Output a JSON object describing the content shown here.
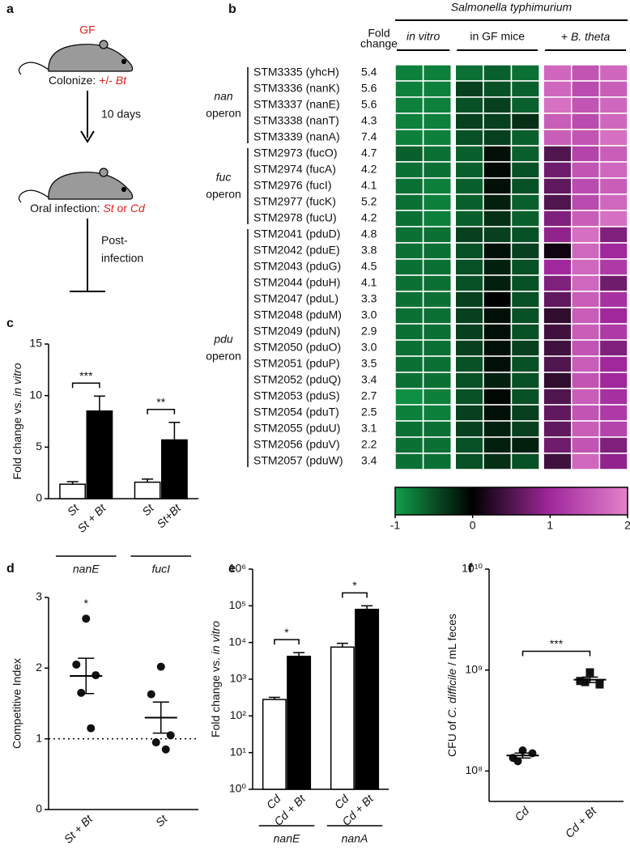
{
  "panel_labels": [
    "a",
    "b",
    "c",
    "d",
    "e",
    "f"
  ],
  "diagram": {
    "gf_label": "GF",
    "colonize": [
      "Colonize: ",
      "+/- ",
      "Bt"
    ],
    "duration": "10 days",
    "infection": [
      "Oral infection: ",
      "St",
      " or ",
      "Cd"
    ],
    "post": [
      "Post-",
      "infection"
    ]
  },
  "chart_data": [
    {
      "type": "heatmap",
      "title": "Salmonella typhimurium",
      "column_groups": [
        "in vitro",
        "in GF mice",
        [
          "+ ",
          "B. theta"
        ]
      ],
      "group_sizes": [
        2,
        3,
        3
      ],
      "fold_change_label": [
        "Fold",
        "change"
      ],
      "genes": [
        "STM3335 (yhcH)",
        "STM3336 (nanK)",
        "STM3337 (nanE)",
        "STM3338 (nanT)",
        "STM3339 (nanA)",
        "STM2973 (fucO)",
        "STM2974 (fucA)",
        "STM2976 (fucI)",
        "STM2977 (fucK)",
        "STM2978 (fucU)",
        "STM2041 (pduD)",
        "STM2042 (pduE)",
        "STM2043 (pduG)",
        "STM2044 (pduH)",
        "STM2047 (pduL)",
        "STM2048 (pduM)",
        "STM2049 (pduN)",
        "STM2050 (pduO)",
        "STM2051 (pduP)",
        "STM2052 (pduQ)",
        "STM2053 (pduS)",
        "STM2054 (pduT)",
        "STM2055 (pduU)",
        "STM2056 (pduV)",
        "STM2057 (pduW)"
      ],
      "fold_change": [
        "5.4",
        "5.6",
        "5.6",
        "4.3",
        "7.4",
        "4.7",
        "4.2",
        "4.1",
        "5.2",
        "4.2",
        "4.8",
        "3.8",
        "4.5",
        "4.1",
        "3.3",
        "3.0",
        "2.9",
        "3.0",
        "3.5",
        "3.4",
        "2.7",
        "2.5",
        "3.1",
        "2.2",
        "3.4"
      ],
      "operons": [
        {
          "name": "nan",
          "suffix": "operon",
          "rows": [
            0,
            4
          ]
        },
        {
          "name": "fuc",
          "suffix": "operon",
          "rows": [
            5,
            9
          ]
        },
        {
          "name": "pdu",
          "suffix": "operon",
          "rows": [
            10,
            24
          ]
        }
      ],
      "values": [
        [
          -0.8,
          -0.8,
          -0.7,
          -0.6,
          -0.7,
          1.7,
          1.5,
          1.7
        ],
        [
          -0.8,
          -0.8,
          -0.4,
          -0.5,
          -0.6,
          1.7,
          1.4,
          1.6
        ],
        [
          -0.8,
          -0.8,
          -0.5,
          -0.4,
          -0.6,
          1.8,
          1.5,
          1.7
        ],
        [
          -0.8,
          -0.8,
          -0.4,
          -0.4,
          -0.3,
          1.6,
          1.4,
          1.7
        ],
        [
          -0.8,
          -0.8,
          -0.5,
          -0.4,
          -0.6,
          1.6,
          1.5,
          1.8
        ],
        [
          -0.6,
          -0.7,
          -0.6,
          -0.1,
          -0.6,
          0.5,
          1.3,
          1.6
        ],
        [
          -0.7,
          -0.7,
          -0.6,
          -0.05,
          -0.5,
          0.7,
          1.5,
          1.7
        ],
        [
          -0.7,
          -0.8,
          -0.6,
          -0.1,
          -0.5,
          0.6,
          1.4,
          1.6
        ],
        [
          -0.7,
          -0.8,
          -0.6,
          -0.2,
          -0.6,
          0.5,
          1.4,
          1.7
        ],
        [
          -0.7,
          -0.8,
          -0.6,
          -0.3,
          -0.6,
          0.8,
          1.6,
          1.8
        ],
        [
          -0.7,
          -0.7,
          -0.4,
          -0.4,
          -0.5,
          0.9,
          1.8,
          0.8
        ],
        [
          -0.7,
          -0.7,
          -0.5,
          -0.1,
          -0.4,
          0.1,
          1.7,
          1.0
        ],
        [
          -0.7,
          -0.7,
          -0.5,
          -0.2,
          -0.5,
          1.0,
          1.7,
          1.2
        ],
        [
          -0.7,
          -0.7,
          -0.5,
          -0.2,
          -0.5,
          0.8,
          1.7,
          0.7
        ],
        [
          -0.7,
          -0.7,
          -0.4,
          0.0,
          -0.5,
          0.6,
          1.6,
          1.1
        ],
        [
          -0.7,
          -0.7,
          -0.4,
          -0.1,
          -0.5,
          0.3,
          1.6,
          1.0
        ],
        [
          -0.7,
          -0.7,
          -0.4,
          -0.1,
          -0.5,
          0.4,
          1.6,
          1.2
        ],
        [
          -0.7,
          -0.7,
          -0.4,
          -0.1,
          -0.4,
          0.4,
          1.5,
          0.8
        ],
        [
          -0.7,
          -0.7,
          -0.5,
          -0.1,
          -0.5,
          0.5,
          1.6,
          1.0
        ],
        [
          -0.7,
          -0.7,
          -0.5,
          -0.2,
          -0.5,
          0.3,
          1.5,
          1.0
        ],
        [
          -0.9,
          -0.8,
          -0.5,
          -0.05,
          -0.5,
          0.5,
          1.6,
          1.1
        ],
        [
          -0.8,
          -0.8,
          -0.4,
          -0.1,
          -0.4,
          0.6,
          1.5,
          1.2
        ],
        [
          -0.7,
          -0.7,
          -0.4,
          -0.2,
          -0.4,
          0.6,
          1.6,
          1.3
        ],
        [
          -0.7,
          -0.7,
          -0.5,
          -0.2,
          -0.2,
          0.7,
          1.5,
          0.8
        ],
        [
          -0.7,
          -0.7,
          -0.5,
          -0.3,
          -0.5,
          0.4,
          1.7,
          0.9
        ]
      ],
      "zlim": [
        -1,
        2
      ],
      "colorbar_ticks": [
        -1,
        0,
        1,
        2
      ],
      "colors": [
        "#10a04a",
        "#000000",
        "#a0289c",
        "#e482cc"
      ]
    },
    {
      "type": "bar",
      "categories": [
        "St",
        "St + Bt",
        "St",
        "St+Bt"
      ],
      "group_labels": [
        "nanE",
        "fucI"
      ],
      "group_size": 2,
      "values": [
        1.4,
        8.5,
        1.6,
        5.7
      ],
      "errors": [
        0.25,
        1.45,
        0.3,
        1.7
      ],
      "colors": [
        "#ffffff",
        "#000000",
        "#ffffff",
        "#000000"
      ],
      "ylim": [
        0,
        15
      ],
      "yticks": [
        0,
        5,
        10,
        15
      ],
      "ylabel": [
        "Fold change vs. ",
        "in vitro"
      ],
      "significance": [
        {
          "label": "***",
          "between": [
            0,
            1
          ]
        },
        {
          "label": "**",
          "between": [
            2,
            3
          ]
        }
      ]
    },
    {
      "type": "dot",
      "categories": [
        "St + Bt",
        "St"
      ],
      "markers": [
        "circle",
        "circle"
      ],
      "points": [
        [
          2.7,
          2.05,
          1.9,
          1.65,
          1.15
        ],
        [
          2.02,
          1.63,
          1.05,
          0.95,
          0.85
        ]
      ],
      "means": [
        1.89,
        1.3
      ],
      "sems": [
        0.25,
        0.22
      ],
      "ylim": [
        0,
        3
      ],
      "yticks": [
        0,
        1,
        2,
        3
      ],
      "reference_line": 1,
      "ylabel": "Competitive Index",
      "annotations": [
        {
          "label": "*",
          "category": 0
        }
      ]
    },
    {
      "type": "bar",
      "log": true,
      "categories": [
        "Cd",
        "Cd + Bt",
        "Cd",
        "Cd + Bt"
      ],
      "group_labels": [
        "nanE",
        "nanA"
      ],
      "group_size": 2,
      "values": [
        280,
        4200,
        7500,
        80000
      ],
      "errors": [
        40,
        1100,
        2000,
        20000
      ],
      "colors": [
        "#ffffff",
        "#000000",
        "#ffffff",
        "#000000"
      ],
      "ylim": [
        1,
        1000000
      ],
      "yticks": [
        {
          "value": 1,
          "label": "10⁰"
        },
        {
          "value": 10,
          "label": "10¹"
        },
        {
          "value": 100,
          "label": "10²"
        },
        {
          "value": 1000,
          "label": "10³"
        },
        {
          "value": 10000,
          "label": "10⁴"
        },
        {
          "value": 100000,
          "label": "10⁵"
        },
        {
          "value": 1000000,
          "label": "10⁶"
        }
      ],
      "ylabel": [
        "Fold change vs. ",
        "in vitro"
      ],
      "significance": [
        {
          "label": "*",
          "between": [
            0,
            1
          ]
        },
        {
          "label": "*",
          "between": [
            2,
            3
          ]
        }
      ]
    },
    {
      "type": "dot",
      "log": true,
      "categories": [
        "Cd",
        "Cd + Bt"
      ],
      "markers": [
        "circle",
        "square"
      ],
      "points": [
        [
          160000000,
          135000000,
          150000000,
          125000000
        ],
        [
          950000000,
          780000000,
          720000000,
          760000000
        ]
      ],
      "means": [
        142500000,
        802500000
      ],
      "sems": [
        8000000,
        50000000
      ],
      "ylim": [
        50000000,
        10000000000
      ],
      "yticks": [
        {
          "value": 100000000,
          "label": "10⁸"
        },
        {
          "value": 1000000000,
          "label": "10⁹"
        },
        {
          "value": 10000000000,
          "label": "10¹⁰"
        }
      ],
      "ylabel": [
        "CFU of ",
        "C. difficile",
        " / mL feces"
      ],
      "significance": [
        {
          "label": "***",
          "between": [
            0,
            1
          ]
        }
      ]
    }
  ]
}
